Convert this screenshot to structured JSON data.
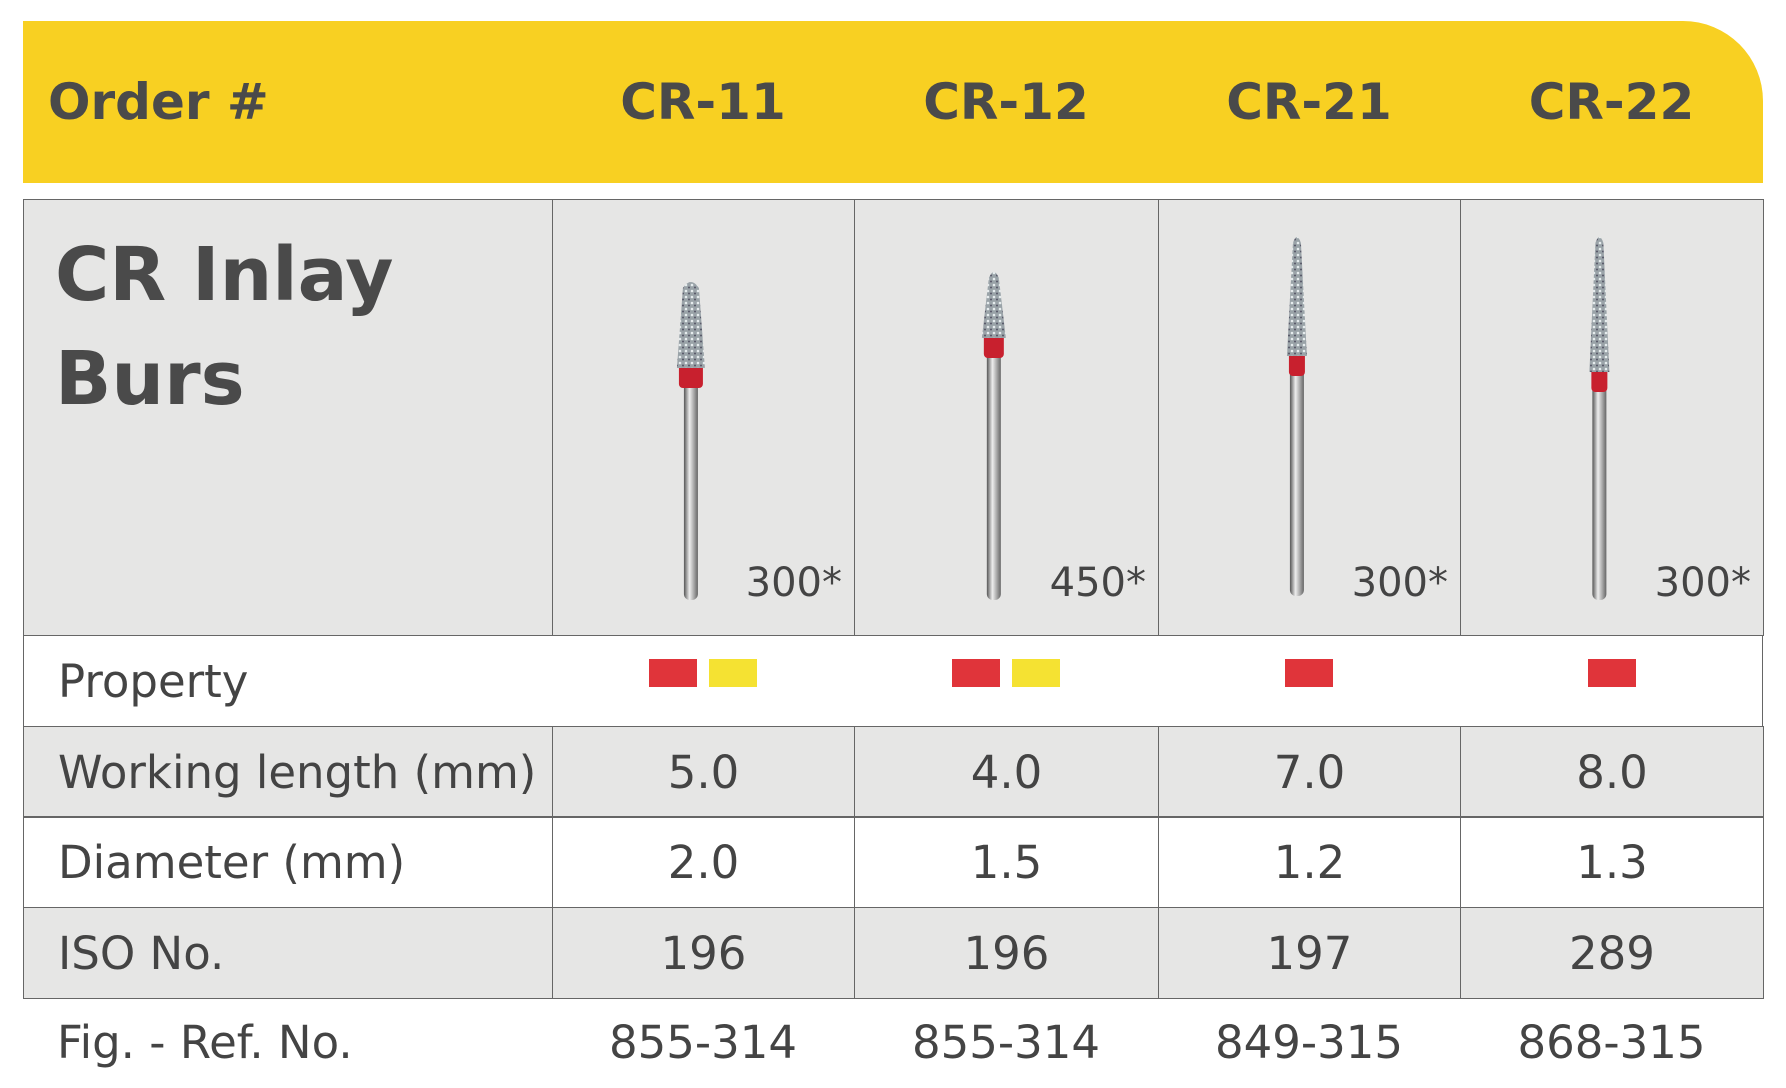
{
  "header": {
    "label": "Order #",
    "columns": [
      "CR-11",
      "CR-12",
      "CR-21",
      "CR-22"
    ]
  },
  "product": {
    "title_lines": [
      "CR Inlay",
      "Burs"
    ],
    "grit": [
      "300*",
      "450*",
      "300*",
      "300*"
    ]
  },
  "property": {
    "label": "Property",
    "colors": [
      [
        "#e0343a",
        "#f5e232"
      ],
      [
        "#e0343a",
        "#f5e232"
      ],
      [
        "#e0343a"
      ],
      [
        "#e0343a"
      ]
    ]
  },
  "table": {
    "rows": [
      [
        "Working length (mm)",
        "5.0",
        "4.0",
        "7.0",
        "8.0"
      ],
      [
        "Diameter (mm)",
        "2.0",
        "1.5",
        "1.2",
        "1.3"
      ],
      [
        "ISO No.",
        "196",
        "196",
        "197",
        "289"
      ],
      [
        "Fig. - Ref. No.",
        "855-314",
        "855-314",
        "849-315",
        "868-315"
      ]
    ]
  }
}
